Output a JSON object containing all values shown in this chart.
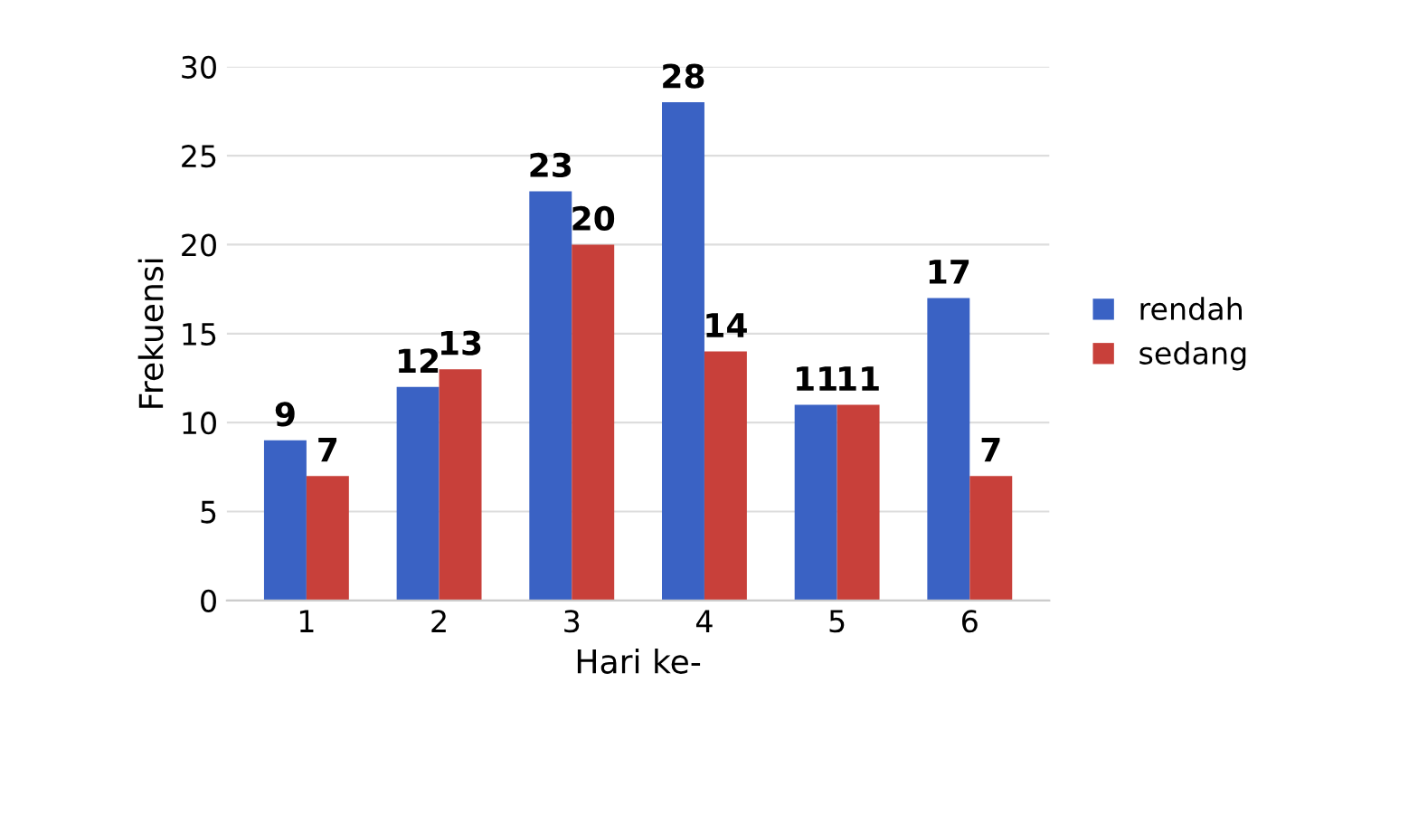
{
  "chart_data": {
    "type": "bar",
    "xlabel": "Hari ke-",
    "ylabel": "Frekuensi",
    "categories": [
      "1",
      "2",
      "3",
      "4",
      "5",
      "6"
    ],
    "series": [
      {
        "name": "rendah",
        "color": "#3a62c4",
        "values": [
          9,
          12,
          23,
          28,
          11,
          17
        ]
      },
      {
        "name": "sedang",
        "color": "#c8403a",
        "values": [
          7,
          13,
          20,
          14,
          11,
          7
        ]
      }
    ],
    "ylim": [
      0,
      30
    ],
    "yticks": [
      0,
      5,
      10,
      15,
      20,
      25,
      30
    ],
    "grid": "y",
    "legend": "right",
    "data_labels": true
  }
}
